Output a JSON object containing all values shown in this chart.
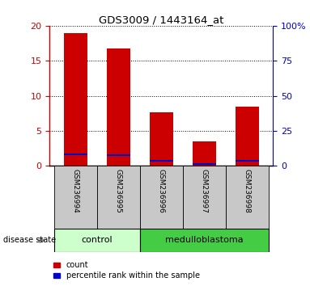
{
  "title": "GDS3009 / 1443164_at",
  "samples": [
    "GSM236994",
    "GSM236995",
    "GSM236996",
    "GSM236997",
    "GSM236998"
  ],
  "count_values": [
    19.0,
    16.7,
    7.7,
    3.5,
    8.5
  ],
  "percentile_values": [
    8.3,
    7.5,
    3.7,
    1.4,
    3.8
  ],
  "ylim_left": [
    0,
    20
  ],
  "ylim_right": [
    0,
    100
  ],
  "yticks_left": [
    0,
    5,
    10,
    15,
    20
  ],
  "yticks_right": [
    0,
    25,
    50,
    75,
    100
  ],
  "bar_color": "#cc0000",
  "percentile_color": "#0000cc",
  "left_tick_color": "#cc0000",
  "right_tick_color": "#0000cc",
  "grid_color": "black",
  "control_color": "#ccffcc",
  "medulloblastoma_color": "#44cc44",
  "disease_label": "disease state",
  "control_label": "control",
  "medulloblastoma_label": "medulloblastoma",
  "legend_count": "count",
  "legend_percentile": "percentile rank within the sample",
  "bar_width": 0.55,
  "tick_label_area_bg": "#c8c8c8"
}
